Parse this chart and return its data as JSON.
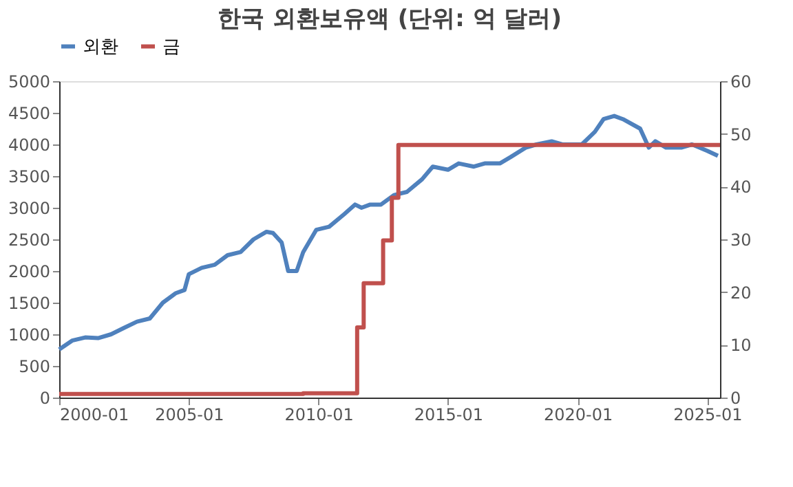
{
  "chart_data": {
    "type": "line",
    "title": "한국 외환보유액 (단위: 억 달러)",
    "legend": "top",
    "grid": false,
    "xlim": [
      "2000-01",
      "2025-07"
    ],
    "xticks": [
      {
        "value": "2000-01",
        "label": "2000-01"
      },
      {
        "value": "2005-01",
        "label": "2005-01"
      },
      {
        "value": "2010-01",
        "label": "2010-01"
      },
      {
        "value": "2015-01",
        "label": "2015-01"
      },
      {
        "value": "2020-01",
        "label": "2020-01"
      },
      {
        "value": "2025-01",
        "label": "2025-01"
      }
    ],
    "ylim": [
      0,
      5000
    ],
    "yticks": [
      0,
      500,
      1000,
      1500,
      2000,
      2500,
      3000,
      3500,
      4000,
      4500,
      5000
    ],
    "y2lim": [
      0,
      60
    ],
    "y2ticks": [
      0,
      10,
      20,
      30,
      40,
      50,
      60
    ],
    "series": [
      {
        "name": "외환",
        "color": "#4f81bd",
        "type": "line",
        "x": [
          "2000-01",
          "2000-07",
          "2001-01",
          "2001-07",
          "2002-01",
          "2002-07",
          "2003-01",
          "2003-07",
          "2004-01",
          "2004-07",
          "2004-11",
          "2005-01",
          "2005-07",
          "2006-01",
          "2006-07",
          "2007-01",
          "2007-07",
          "2008-01",
          "2008-04",
          "2008-08",
          "2008-11",
          "2009-03",
          "2009-06",
          "2009-12",
          "2010-06",
          "2011-01",
          "2011-06",
          "2011-09",
          "2012-01",
          "2012-06",
          "2012-12",
          "2013-06",
          "2014-01",
          "2014-06",
          "2015-01",
          "2015-06",
          "2016-01",
          "2016-06",
          "2017-01",
          "2017-06",
          "2018-01",
          "2018-06",
          "2019-01",
          "2019-06",
          "2020-03",
          "2020-09",
          "2021-01",
          "2021-06",
          "2021-10",
          "2022-06",
          "2022-10",
          "2023-01",
          "2023-06",
          "2024-01",
          "2024-06",
          "2025-01",
          "2025-06"
        ],
        "values": [
          760,
          900,
          950,
          940,
          1000,
          1100,
          1200,
          1250,
          1500,
          1650,
          1700,
          1950,
          2050,
          2100,
          2250,
          2300,
          2500,
          2620,
          2600,
          2450,
          2000,
          2000,
          2300,
          2650,
          2700,
          2900,
          3050,
          3000,
          3050,
          3050,
          3200,
          3250,
          3450,
          3650,
          3600,
          3700,
          3650,
          3700,
          3700,
          3800,
          3950,
          4000,
          4050,
          4000,
          4000,
          4200,
          4400,
          4450,
          4400,
          4250,
          3950,
          4050,
          3950,
          3950,
          4000,
          3900,
          3820
        ]
      },
      {
        "name": "금",
        "color": "#c0504d",
        "type": "step",
        "axis": "y2",
        "x": [
          "2000-01",
          "2009-06",
          "2011-07",
          "2011-10",
          "2012-07",
          "2012-11",
          "2013-02",
          "2025-07"
        ],
        "values": [
          0.7,
          0.8,
          13.3,
          21.7,
          29.8,
          37.9,
          47.9,
          47.9
        ]
      }
    ]
  }
}
